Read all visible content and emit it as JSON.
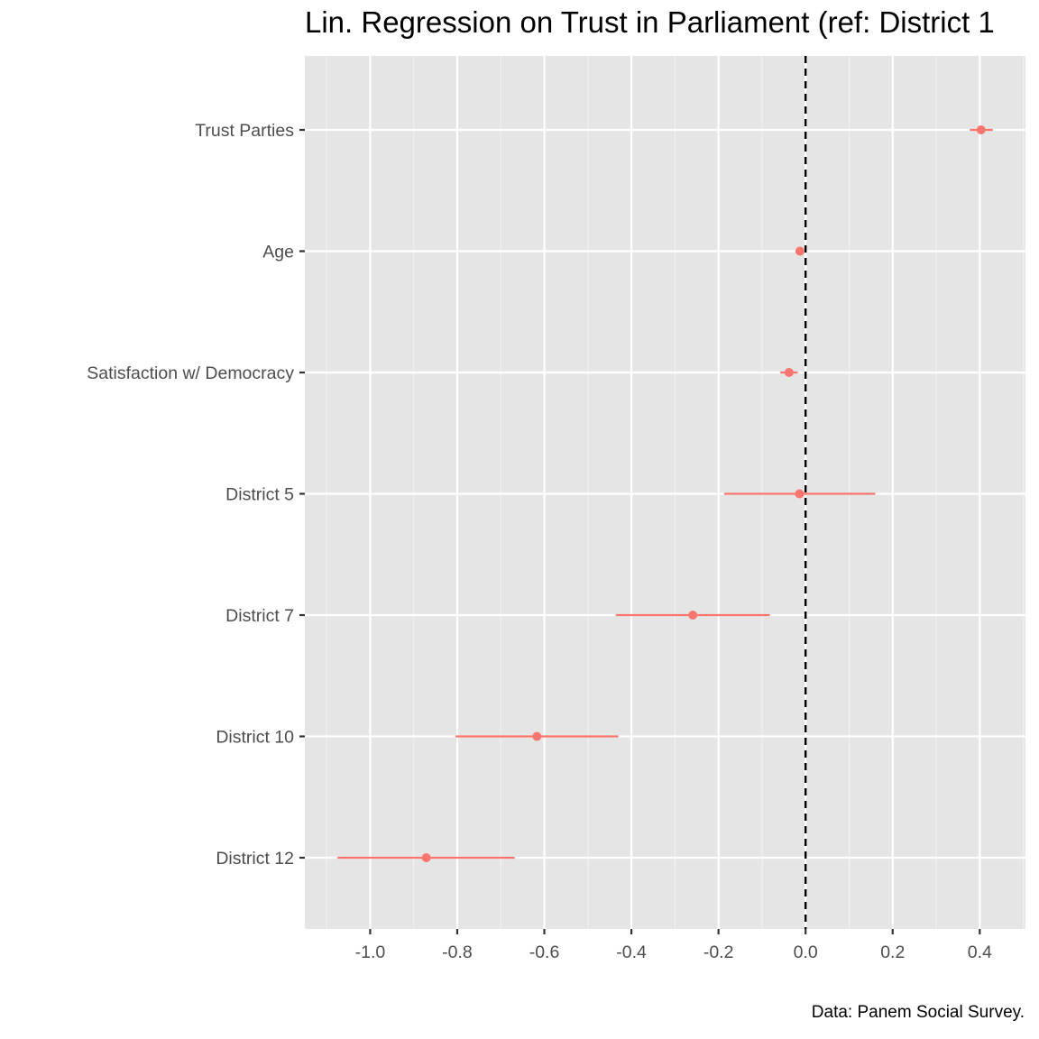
{
  "chart_data": {
    "type": "scatter",
    "title": "Lin. Regression on Trust in Parliament (ref: District 1",
    "caption": "Data: Panem Social Survey.",
    "xlabel": "",
    "ylabel": "",
    "xlim": [
      -1.15,
      0.505
    ],
    "xticks": [
      -1.0,
      -0.8,
      -0.6,
      -0.4,
      -0.2,
      0.0,
      0.2,
      0.4
    ],
    "xtick_labels": [
      "-1.0",
      "-0.8",
      "-0.6",
      "-0.4",
      "-0.2",
      "0.0",
      "0.2",
      "0.4"
    ],
    "reference_line": 0.0,
    "grid": true,
    "point_color": "#f8766d",
    "panel_color": "#e5e5e5",
    "categories": [
      "Trust Parties",
      "Age",
      "Satisfaction w/ Democracy",
      "District 5",
      "District 7",
      "District 10",
      "District 12"
    ],
    "estimates": [
      0.403,
      -0.013,
      -0.038,
      -0.014,
      -0.259,
      -0.617,
      -0.871
    ],
    "ci_low": [
      0.377,
      -0.016,
      -0.058,
      -0.187,
      -0.436,
      -0.804,
      -1.075
    ],
    "ci_high": [
      0.43,
      -0.01,
      -0.018,
      0.16,
      -0.082,
      -0.43,
      -0.668
    ]
  }
}
